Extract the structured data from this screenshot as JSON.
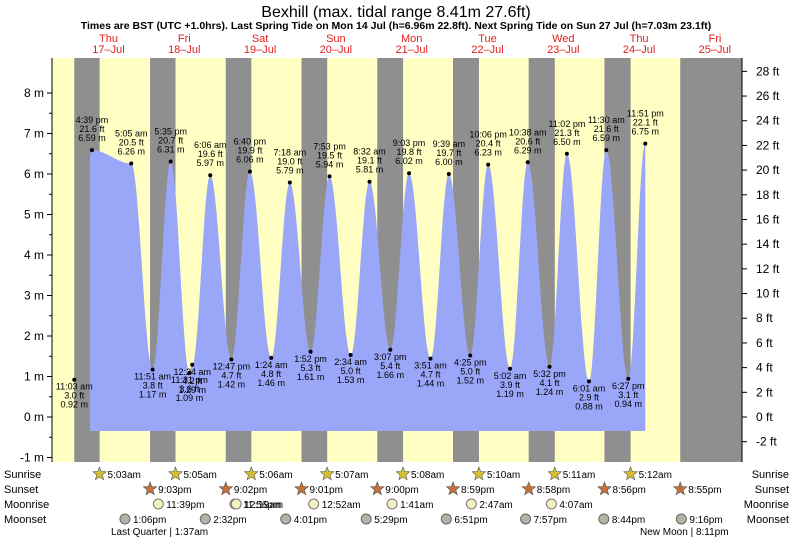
{
  "title": "Bexhill (max. tidal range 8.41m 27.6ft)",
  "subtitle": "Times are BST (UTC +1.0hrs). Last Spring Tide on Mon 14 Jul (h=6.96m 22.8ft). Next Spring Tide on Sun 27 Jul (h=7.03m 23.1ft)",
  "colors": {
    "water": "#9aa6f8",
    "night": "#8f8f8f",
    "day": "#ffffc4",
    "day_label": "#e02020"
  },
  "chart_data": {
    "type": "area",
    "title": "Bexhill (max. tidal range 8.41m 27.6ft)",
    "ylabel_left": "m",
    "ylabel_right": "ft",
    "ylim_m": [
      -1.1,
      8.8
    ],
    "x_start": "2025-07-16 14:00",
    "x_end": "2025-07-25 00:00",
    "y_ticks_m": [
      "-1 m",
      "0 m",
      "1 m",
      "2 m",
      "3 m",
      "4 m",
      "5 m",
      "6 m",
      "7 m",
      "8 m"
    ],
    "y_ticks_ft": [
      "-2 ft",
      "0 ft",
      "2 ft",
      "4 ft",
      "6 ft",
      "8 ft",
      "10 ft",
      "12 ft",
      "14 ft",
      "16 ft",
      "18 ft",
      "20 ft",
      "22 ft",
      "24 ft",
      "26 ft",
      "28 ft"
    ],
    "days": [
      {
        "dow": "Thu",
        "date": "17–Jul"
      },
      {
        "dow": "Fri",
        "date": "18–Jul"
      },
      {
        "dow": "Sat",
        "date": "19–Jul"
      },
      {
        "dow": "Sun",
        "date": "20–Jul"
      },
      {
        "dow": "Mon",
        "date": "21–Jul"
      },
      {
        "dow": "Tue",
        "date": "22–Jul"
      },
      {
        "dow": "Wed",
        "date": "23–Jul"
      },
      {
        "dow": "Thu",
        "date": "24–Jul"
      },
      {
        "dow": "Fri",
        "date": "25–Jul"
      }
    ],
    "tides": [
      {
        "type": "high",
        "time": "4:39 pm",
        "height_ft": "21.6 ft",
        "height_m": "6.59 m"
      },
      {
        "type": "low",
        "time": "11:03 am",
        "height_ft": "3.0 ft",
        "height_m": "0.92 m"
      },
      {
        "type": "high",
        "time": "5:05 am",
        "height_ft": "20.5 ft",
        "height_m": "6.26 m"
      },
      {
        "type": "low",
        "time": "11:31 pm",
        "height_ft": "3.6 ft",
        "height_m": "1.09 m"
      },
      {
        "type": "high",
        "time": "5:35 pm",
        "height_ft": "20.7 ft",
        "height_m": "6.31 m"
      },
      {
        "type": "low",
        "time": "11:51 am",
        "height_ft": "3.8 ft",
        "height_m": "1.17 m"
      },
      {
        "type": "high",
        "time": "6:06 am",
        "height_ft": "19.6 ft",
        "height_m": "5.97 m"
      },
      {
        "type": "low",
        "time": "12:24 am",
        "height_ft": "4.2 ft",
        "height_m": "1.29 m"
      },
      {
        "type": "high",
        "time": "6:40 pm",
        "height_ft": "19.9 ft",
        "height_m": "6.06 m"
      },
      {
        "type": "low",
        "time": "12:47 pm",
        "height_ft": "4.7 ft",
        "height_m": "1.42 m"
      },
      {
        "type": "high",
        "time": "7:18 am",
        "height_ft": "19.0 ft",
        "height_m": "5.79 m"
      },
      {
        "type": "low",
        "time": "1:24 am",
        "height_ft": "4.8 ft",
        "height_m": "1.46 m"
      },
      {
        "type": "high",
        "time": "7:53 pm",
        "height_ft": "19.5 ft",
        "height_m": "5.94 m"
      },
      {
        "type": "low",
        "time": "1:52 pm",
        "height_ft": "5.3 ft",
        "height_m": "1.61 m"
      },
      {
        "type": "high",
        "time": "8:32 am",
        "height_ft": "19.1 ft",
        "height_m": "5.81 m"
      },
      {
        "type": "low",
        "time": "2:34 am",
        "height_ft": "5.0 ft",
        "height_m": "1.53 m"
      },
      {
        "type": "high",
        "time": "9:03 pm",
        "height_ft": "19.8 ft",
        "height_m": "6.02 m"
      },
      {
        "type": "low",
        "time": "3:07 pm",
        "height_ft": "5.4 ft",
        "height_m": "1.66 m"
      },
      {
        "type": "high",
        "time": "9:39 am",
        "height_ft": "19.7 ft",
        "height_m": "6.00 m"
      },
      {
        "type": "low",
        "time": "3:51 am",
        "height_ft": "4.7 ft",
        "height_m": "1.44 m"
      },
      {
        "type": "high",
        "time": "10:06 pm",
        "height_ft": "20.4 ft",
        "height_m": "6.23 m"
      },
      {
        "type": "low",
        "time": "4:25 pm",
        "height_ft": "5.0 ft",
        "height_m": "1.52 m"
      },
      {
        "type": "high",
        "time": "10:38 am",
        "height_ft": "20.6 ft",
        "height_m": "6.29 m"
      },
      {
        "type": "low",
        "time": "5:02 am",
        "height_ft": "3.9 ft",
        "height_m": "1.19 m"
      },
      {
        "type": "high",
        "time": "11:02 pm",
        "height_ft": "21.3 ft",
        "height_m": "6.50 m"
      },
      {
        "type": "low",
        "time": "5:32 pm",
        "height_ft": "4.1 ft",
        "height_m": "1.24 m"
      },
      {
        "type": "high",
        "time": "11:30 am",
        "height_ft": "21.6 ft",
        "height_m": "6.59 m"
      },
      {
        "type": "low",
        "time": "6:01 am",
        "height_ft": "2.9 ft",
        "height_m": "0.88 m"
      },
      {
        "type": "high",
        "time": "11:51 pm",
        "height_ft": "22.1 ft",
        "height_m": "6.75 m"
      },
      {
        "type": "low",
        "time": "6:27 pm",
        "height_ft": "3.1 ft",
        "height_m": "0.94 m"
      }
    ]
  },
  "rows": {
    "labels": [
      "Sunrise",
      "Sunset",
      "Moonrise",
      "Moonset"
    ],
    "sunrise": [
      "5:03am",
      "5:05am",
      "5:06am",
      "5:07am",
      "5:08am",
      "5:10am",
      "5:11am",
      "5:12am"
    ],
    "sunset": [
      "9:03pm",
      "9:02pm",
      "9:01pm",
      "9:00pm",
      "8:59pm",
      "8:58pm",
      "8:56pm",
      "8:55pm"
    ],
    "moonrise": [
      "11:39pm",
      "11:56pm",
      "12:19am",
      "12:52am",
      "1:41am",
      "2:47am",
      "4:07am"
    ],
    "moonset": [
      "1:06pm",
      "2:32pm",
      "4:01pm",
      "5:29pm",
      "6:51pm",
      "7:57pm",
      "8:44pm",
      "9:16pm"
    ],
    "moon_phase_1": "Last Quarter | 1:37am",
    "moon_phase_2": "New Moon | 8:11pm"
  }
}
